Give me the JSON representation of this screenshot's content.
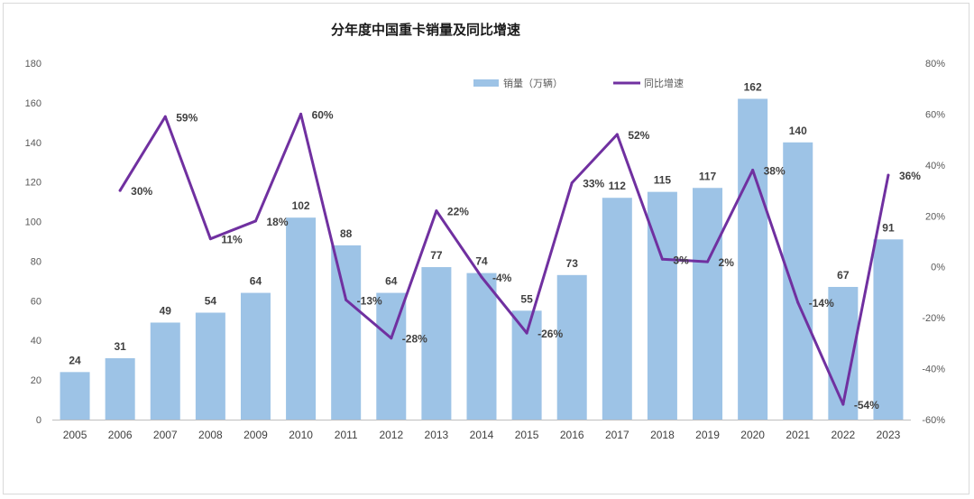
{
  "chart_data": {
    "type": "bar+line",
    "title": "分年度中国重卡销量及同比增速",
    "categories": [
      "2005",
      "2006",
      "2007",
      "2008",
      "2009",
      "2010",
      "2011",
      "2012",
      "2013",
      "2014",
      "2015",
      "2016",
      "2017",
      "2018",
      "2019",
      "2020",
      "2021",
      "2022",
      "2023"
    ],
    "series": [
      {
        "name": "销量（万辆）",
        "type": "bar",
        "axis": "left",
        "color": "#9dc3e6",
        "values": [
          24,
          31,
          49,
          54,
          64,
          102,
          88,
          64,
          77,
          74,
          55,
          73,
          112,
          115,
          117,
          162,
          140,
          67,
          91
        ],
        "labels": [
          "24",
          "31",
          "49",
          "54",
          "64",
          "102",
          "88",
          "64",
          "77",
          "74",
          "55",
          "73",
          "112",
          "115",
          "117",
          "162",
          "140",
          "67",
          "91"
        ]
      },
      {
        "name": "同比增速",
        "type": "line",
        "axis": "right",
        "color": "#7030a0",
        "values": [
          null,
          30,
          59,
          11,
          18,
          60,
          -13,
          -28,
          22,
          -4,
          -26,
          33,
          52,
          3,
          2,
          38,
          -14,
          -54,
          36
        ],
        "labels": [
          "",
          "30%",
          "59%",
          "11%",
          "18%",
          "60%",
          "-13%",
          "-28%",
          "22%",
          "-4%",
          "-26%",
          "33%",
          "52%",
          "3%",
          "2%",
          "38%",
          "-14%",
          "-54%",
          "36%"
        ]
      }
    ],
    "y_left": {
      "min": 0,
      "max": 180,
      "ticks": [
        "0",
        "20",
        "40",
        "60",
        "80",
        "100",
        "120",
        "140",
        "160",
        "180"
      ]
    },
    "y_right": {
      "min": -60,
      "max": 80,
      "ticks": [
        "-60%",
        "-40%",
        "-20%",
        "0%",
        "20%",
        "40%",
        "60%",
        "80%"
      ]
    },
    "legend": {
      "position": "top-right",
      "bar_label": "销量（万辆）",
      "line_label": "同比增速"
    },
    "grid": false
  }
}
